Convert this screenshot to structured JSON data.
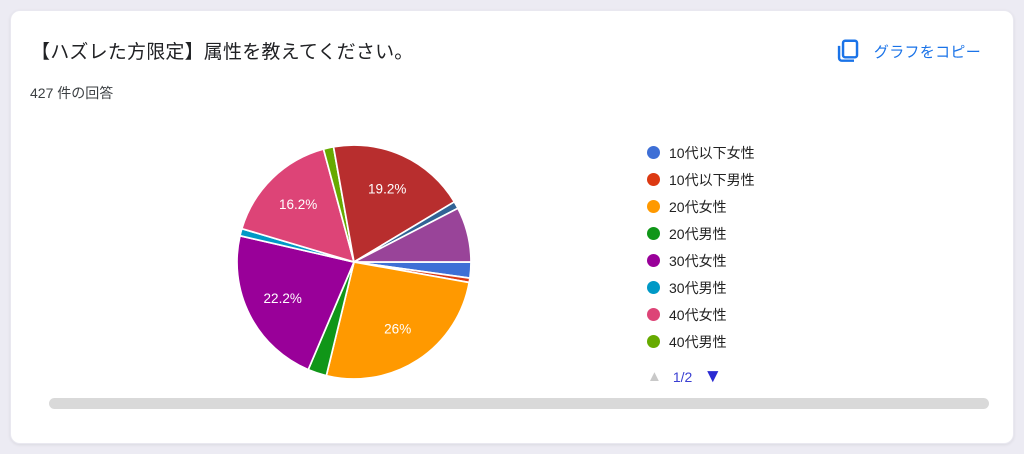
{
  "page": {
    "background": "#ecebf3",
    "card_background": "#ffffff",
    "scrollbar_color": "#d9d9d9"
  },
  "header": {
    "title": "【ハズレた方限定】属性を教えてください。",
    "response_count": "427 件の回答",
    "copy_button": {
      "label": "グラフをコピー",
      "color": "#1a73e8",
      "icon": "copy-icon"
    }
  },
  "chart_data": {
    "type": "pie",
    "title": "【ハズレた方限定】属性を教えてください。",
    "responses": 427,
    "start_angle_deg": 90,
    "slices": [
      {
        "label": "10代以下女性",
        "pct": 2.2,
        "color": "#3e6fd6",
        "pie_label": "",
        "in_legend": true
      },
      {
        "label": "10代以下男性",
        "pct": 0.6,
        "color": "#dc3912",
        "pie_label": "",
        "in_legend": true
      },
      {
        "label": "20代女性",
        "pct": 26,
        "color": "#ff9900",
        "pie_label": "26%",
        "in_legend": true
      },
      {
        "label": "20代男性",
        "pct": 2.6,
        "color": "#109618",
        "pie_label": "",
        "in_legend": true
      },
      {
        "label": "30代女性",
        "pct": 22.2,
        "color": "#990099",
        "pie_label": "22.2%",
        "in_legend": true
      },
      {
        "label": "30代男性",
        "pct": 1.0,
        "color": "#0099c6",
        "pie_label": "",
        "in_legend": true
      },
      {
        "label": "40代女性",
        "pct": 16.2,
        "color": "#dd4477",
        "pie_label": "16.2%",
        "in_legend": true
      },
      {
        "label": "40代男性",
        "pct": 1.4,
        "color": "#66aa00",
        "pie_label": "",
        "in_legend": true
      },
      {
        "label": "",
        "pct": 19.2,
        "color": "#b82e2e",
        "pie_label": "19.2%",
        "in_legend": false
      },
      {
        "label": "",
        "pct": 1.0,
        "color": "#316395",
        "pie_label": "",
        "in_legend": false
      },
      {
        "label": "",
        "pct": 7.6,
        "color": "#994499",
        "pie_label": "",
        "in_legend": false
      }
    ],
    "legend": {
      "position": "right",
      "page_indicator": "1/2",
      "page_indicator_color": "#3a3fd2",
      "up_arrow_color": "#c9c9c9",
      "down_arrow_color": "#2a2ad2"
    }
  }
}
